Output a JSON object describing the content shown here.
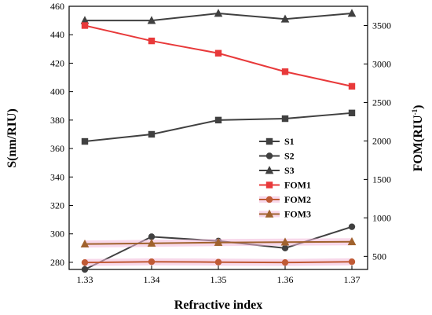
{
  "chart_data": {
    "type": "line",
    "x": [
      1.33,
      1.34,
      1.35,
      1.36,
      1.37
    ],
    "xlabel": "Refractive index",
    "ylabel_left": "S(nm/RIU)",
    "ylabel_right_base": "FOM(RIU",
    "ylabel_right_sup": "-1",
    "ylabel_right_close": ")",
    "xlim": [
      1.33,
      1.37
    ],
    "ylim_left": [
      275,
      460
    ],
    "ylim_right": [
      330,
      3750
    ],
    "xticks": [
      "1.33",
      "1.34",
      "1.35",
      "1.36",
      "1.37"
    ],
    "yticks_left": [
      "280",
      "300",
      "320",
      "340",
      "360",
      "380",
      "400",
      "420",
      "440",
      "460"
    ],
    "yticks_right": [
      "500",
      "1000",
      "1500",
      "2000",
      "2500",
      "3000",
      "3500"
    ],
    "grid": false,
    "legend_position": "center-right",
    "series": [
      {
        "name": "S1",
        "axis": "left",
        "marker": "square",
        "color": "#404040",
        "values": [
          365,
          370,
          380,
          381,
          385
        ]
      },
      {
        "name": "S2",
        "axis": "left",
        "marker": "circle",
        "color": "#404040",
        "values": [
          275,
          298,
          295,
          290,
          305
        ]
      },
      {
        "name": "S3",
        "axis": "left",
        "marker": "triangle",
        "color": "#404040",
        "values": [
          450,
          450,
          455,
          451,
          455
        ]
      },
      {
        "name": "FOM1",
        "axis": "right",
        "marker": "square",
        "color": "#e8393a",
        "values": [
          3500,
          3300,
          3140,
          2900,
          2710
        ]
      },
      {
        "name": "FOM2",
        "axis": "right",
        "marker": "circle",
        "color": "#c05a35",
        "values": [
          420,
          430,
          425,
          420,
          430
        ]
      },
      {
        "name": "FOM3",
        "axis": "right",
        "marker": "triangle",
        "color": "#a0622d",
        "values": [
          660,
          670,
          680,
          685,
          690
        ]
      }
    ]
  }
}
